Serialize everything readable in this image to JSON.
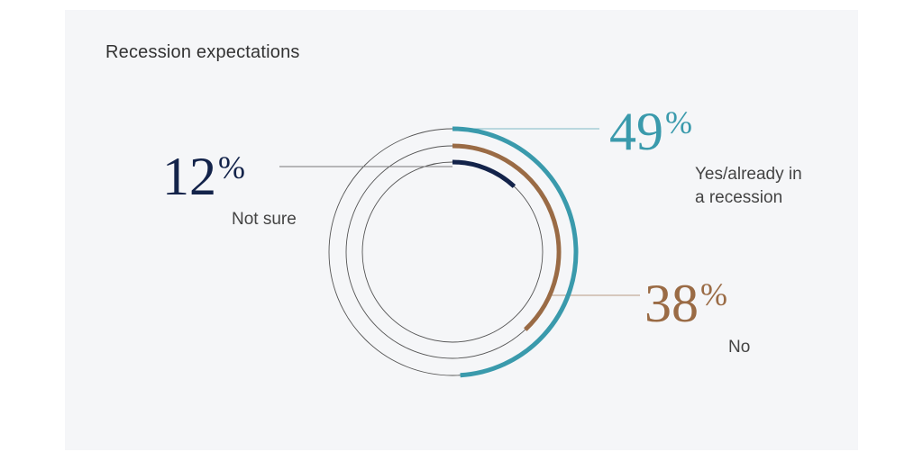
{
  "chart_data": {
    "type": "radial-bar",
    "title": "Recession expectations",
    "unit": "%",
    "series": [
      {
        "name": "Yes/already in a recession",
        "label_lines": [
          "Yes/already in",
          "a recession"
        ],
        "value": 49,
        "color": "#3a9aac"
      },
      {
        "name": "No",
        "label_lines": [
          "No"
        ],
        "value": 38,
        "color": "#9a6b45"
      },
      {
        "name": "Not sure",
        "label_lines": [
          "Not sure"
        ],
        "value": 12,
        "color": "#13234a"
      }
    ]
  }
}
